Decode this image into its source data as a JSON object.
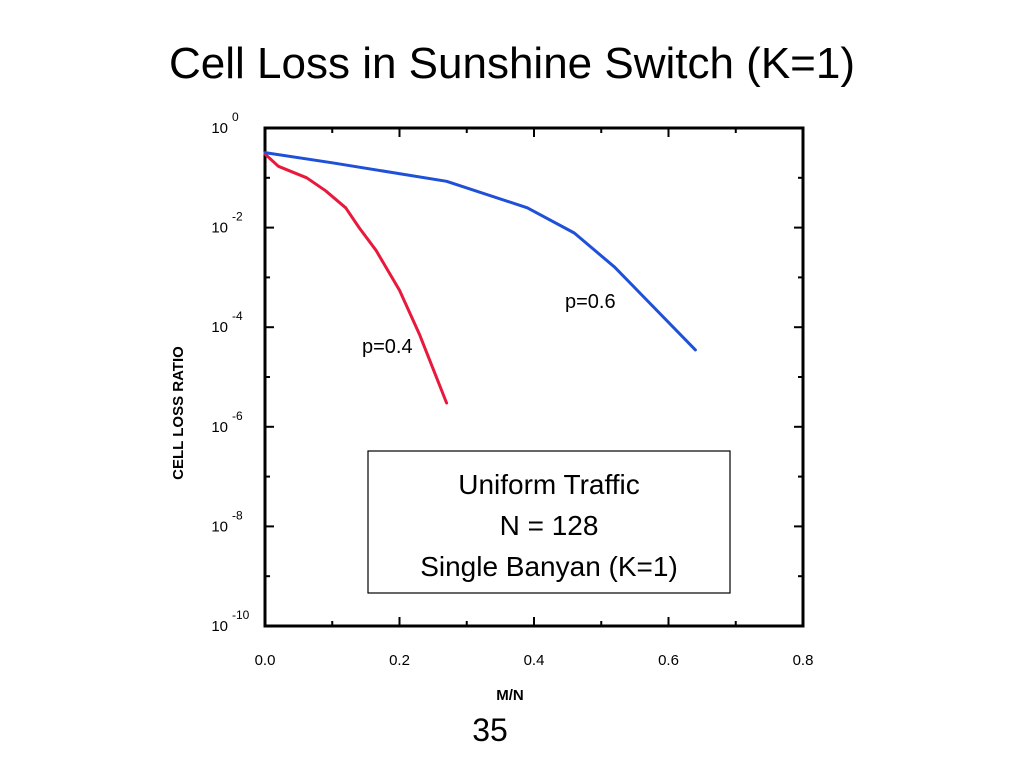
{
  "slide": {
    "title": "Cell Loss in Sunshine Switch (K=1)",
    "page_number": "35"
  },
  "chart_data": {
    "type": "line",
    "title": "",
    "xlabel": "M/N",
    "ylabel": "CELL LOSS RATIO",
    "xlim": [
      0,
      0.8
    ],
    "ylim": [
      1e-10,
      1
    ],
    "yscale": "log",
    "x_ticks": [
      "0.0",
      "0.2",
      "0.4",
      "0.6",
      "0.8"
    ],
    "y_ticks": [
      {
        "base": "10",
        "exp": "0"
      },
      {
        "base": "10",
        "exp": "-2"
      },
      {
        "base": "10",
        "exp": "-4"
      },
      {
        "base": "10",
        "exp": "-6"
      },
      {
        "base": "10",
        "exp": "-8"
      },
      {
        "base": "10",
        "exp": "-10"
      }
    ],
    "grid": false,
    "series": [
      {
        "name": "p=0.4",
        "color": "#e8193c",
        "x": [
          0.0,
          0.02,
          0.062,
          0.09,
          0.12,
          0.14,
          0.165,
          0.2,
          0.23,
          0.27
        ],
        "y": [
          0.3,
          0.17,
          0.1,
          0.055,
          0.025,
          0.01,
          0.0035,
          0.00055,
          7e-05,
          3e-06
        ]
      },
      {
        "name": "p=0.6",
        "color": "#1f50d8",
        "x": [
          0.0,
          0.1,
          0.27,
          0.39,
          0.46,
          0.52,
          0.64
        ],
        "y": [
          0.32,
          0.2,
          0.085,
          0.025,
          0.0078,
          0.0016,
          3.5e-05
        ]
      }
    ],
    "annotations": [
      {
        "text": "p=0.4",
        "series": "p=0.4"
      },
      {
        "text": "p=0.6",
        "series": "p=0.6"
      }
    ],
    "legend_box": {
      "lines": [
        "Uniform Traffic",
        "N = 128",
        "Single Banyan (K=1)"
      ]
    }
  }
}
